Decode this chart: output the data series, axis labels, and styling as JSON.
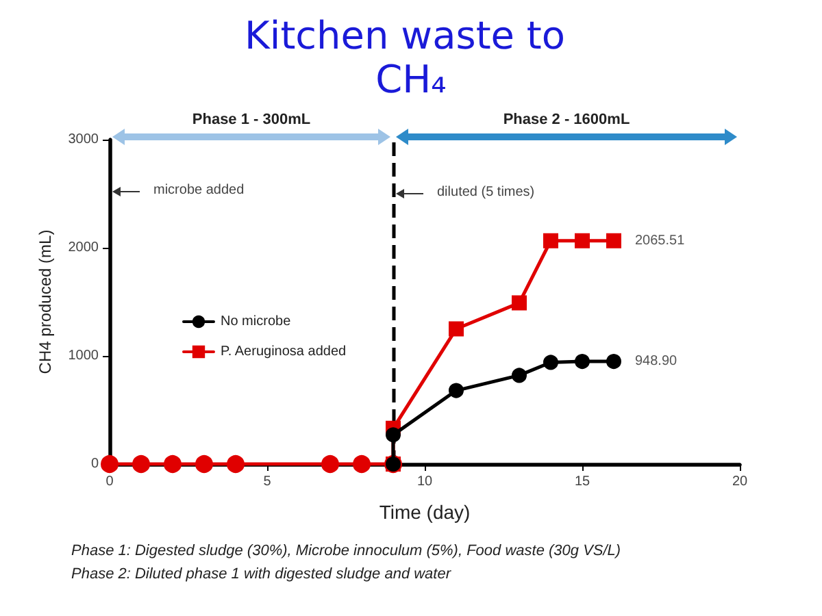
{
  "chart_data": {
    "type": "line",
    "title": "Kitchen waste to CH₄",
    "xlabel": "Time (day)",
    "ylabel": "CH4 produced (mL)",
    "xlim": [
      0,
      20
    ],
    "xticks": [
      0,
      5,
      10,
      15,
      20
    ],
    "ylim": [
      0,
      3000
    ],
    "yticks": [
      0,
      1000,
      2000,
      3000
    ],
    "grid": false,
    "legend": "left",
    "series": [
      {
        "name": "No microbe",
        "color": "#000000",
        "marker": "circle",
        "x": [
          9,
          9,
          11,
          13,
          14,
          15,
          16
        ],
        "values": [
          0,
          270,
          680,
          820,
          940,
          948.9,
          948.9
        ],
        "value_labels": [
          null,
          null,
          null,
          null,
          null,
          null,
          "948.90"
        ]
      },
      {
        "name": "P. Aeruginosa added",
        "color": "#e00000",
        "marker": "square",
        "x": [
          9,
          9,
          11,
          13,
          14,
          15,
          16
        ],
        "values": [
          0,
          330,
          1250,
          1490,
          2065.51,
          2065.51,
          2065.51
        ],
        "value_labels": [
          null,
          null,
          null,
          null,
          null,
          null,
          "2065.51"
        ]
      },
      {
        "color": "#e00000",
        "marker": "circle",
        "x": [
          0,
          1,
          2,
          3,
          4,
          7,
          8,
          9
        ],
        "values": [
          0,
          0,
          0,
          0,
          0,
          0,
          0,
          0
        ]
      }
    ],
    "ref_lines": [
      {
        "axis": "x",
        "value": 9,
        "color": "#000000",
        "line_style": "dashed"
      }
    ],
    "annotations": [
      "Phase 1 - 300mL",
      "Phase 2 - 1600mL",
      "microbe added",
      {
        "text": "diluted (5 times)",
        "x": 9,
        "y": 2500
      },
      "Phase 1: Digested sludge (30%), Microbe innoculum (5%), Food waste (30g VS/L)",
      "Phase 2: Diluted phase 1 with digested sludge and water"
    ]
  }
}
